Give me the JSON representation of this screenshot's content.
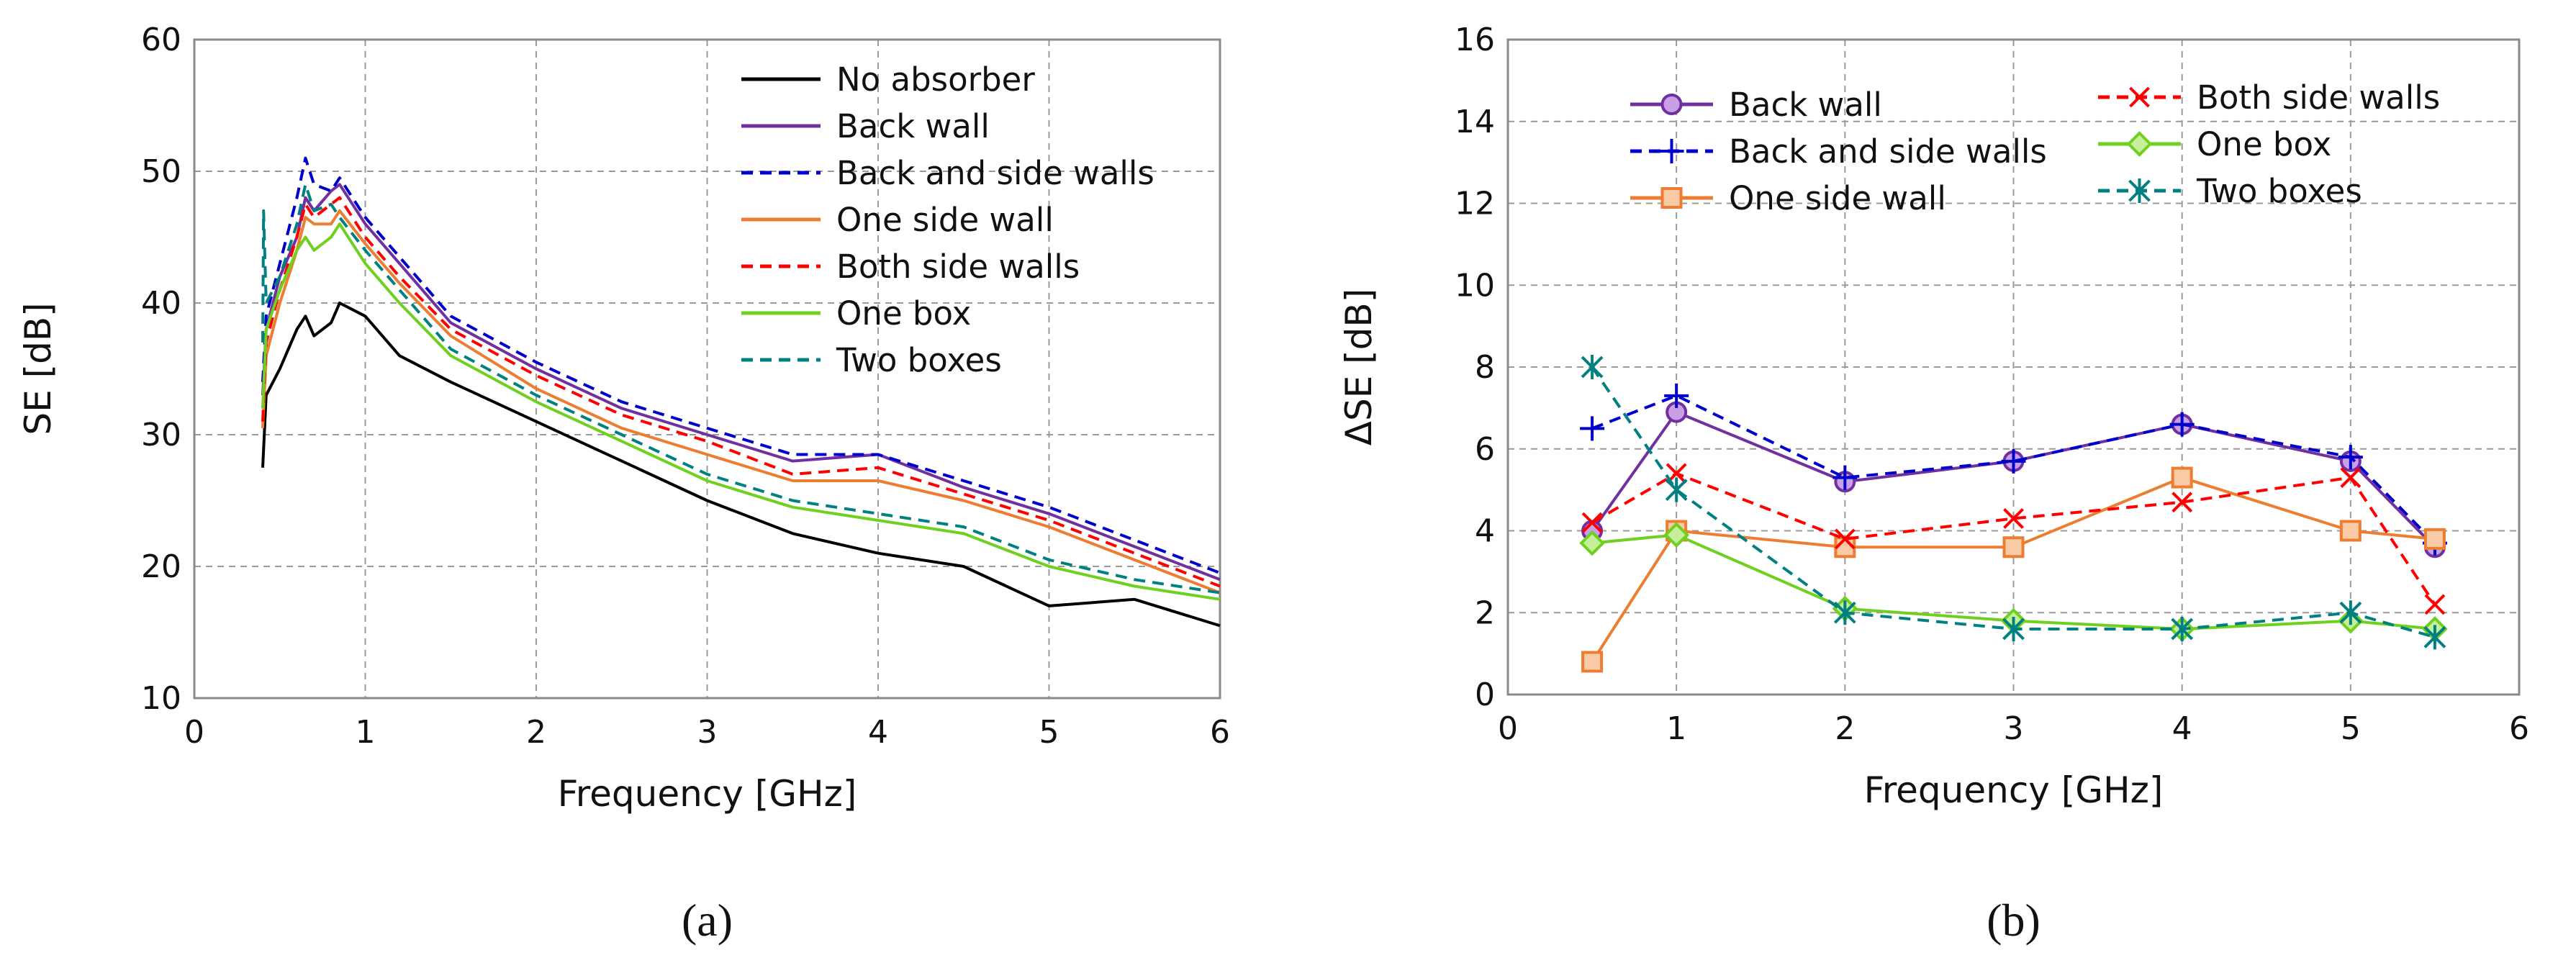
{
  "chart_data": [
    {
      "panel_label": "(a)",
      "type": "line",
      "xlabel": "Frequency [GHz]",
      "ylabel": "SE [dB]",
      "xlim": [
        0,
        6
      ],
      "ylim": [
        10,
        60
      ],
      "xticks": [
        "0",
        "1",
        "2",
        "3",
        "4",
        "5",
        "6"
      ],
      "yticks": [
        "10",
        "20",
        "30",
        "40",
        "50",
        "60"
      ],
      "grid": true,
      "legend_position": "top-right",
      "series": [
        {
          "name": "No absorber",
          "color": "#000000",
          "dash": "solid",
          "x": [
            0.4,
            0.42,
            0.5,
            0.6,
            0.65,
            0.7,
            0.8,
            0.85,
            1.0,
            1.2,
            1.5,
            2.0,
            2.5,
            3.0,
            3.5,
            4.0,
            4.5,
            5.0,
            5.5,
            6.0
          ],
          "y": [
            27.5,
            33,
            35,
            38,
            39,
            37.5,
            38.5,
            40,
            39,
            36,
            34,
            31,
            28,
            25,
            22.5,
            21,
            20,
            17,
            17.5,
            15.5
          ]
        },
        {
          "name": "Back wall",
          "color": "#7030a0",
          "dash": "solid",
          "x": [
            0.4,
            0.42,
            0.5,
            0.6,
            0.65,
            0.7,
            0.8,
            0.85,
            1.0,
            1.2,
            1.5,
            2.0,
            2.5,
            3.0,
            3.5,
            4.0,
            4.5,
            5.0,
            5.5,
            6.0
          ],
          "y": [
            33,
            38,
            42,
            45,
            48,
            47,
            48.5,
            49,
            46,
            43,
            38.5,
            35,
            32,
            30,
            28,
            28.5,
            26,
            24,
            21.5,
            19
          ]
        },
        {
          "name": "Back and side walls",
          "color": "#0000cc",
          "dash": "dash",
          "x": [
            0.4,
            0.42,
            0.5,
            0.6,
            0.65,
            0.7,
            0.8,
            0.85,
            1.0,
            1.2,
            1.5,
            2.0,
            2.5,
            3.0,
            3.5,
            4.0,
            4.5,
            5.0,
            5.5,
            6.0
          ],
          "y": [
            34,
            39,
            43,
            48,
            51,
            49,
            48.5,
            49.5,
            46.5,
            43.5,
            39,
            35.5,
            32.5,
            30.5,
            28.5,
            28.5,
            26.5,
            24.5,
            22,
            19.5
          ]
        },
        {
          "name": "One side wall",
          "color": "#ed7d31",
          "dash": "solid",
          "x": [
            0.4,
            0.42,
            0.5,
            0.6,
            0.65,
            0.7,
            0.8,
            0.85,
            1.0,
            1.2,
            1.5,
            2.0,
            2.5,
            3.0,
            3.5,
            4.0,
            4.5,
            5.0,
            5.5,
            6.0
          ],
          "y": [
            30.5,
            36,
            40,
            44,
            46.5,
            46,
            46,
            47,
            44.5,
            41.5,
            37.5,
            33.5,
            30.5,
            28.5,
            26.5,
            26.5,
            25,
            23,
            20.5,
            18
          ]
        },
        {
          "name": "Both side walls",
          "color": "#ff0000",
          "dash": "dash",
          "x": [
            0.4,
            0.42,
            0.5,
            0.6,
            0.65,
            0.7,
            0.8,
            0.85,
            1.0,
            1.2,
            1.5,
            2.0,
            2.5,
            3.0,
            3.5,
            4.0,
            4.5,
            5.0,
            5.5,
            6.0
          ],
          "y": [
            31,
            37,
            41,
            45,
            47.5,
            46.5,
            47.5,
            48,
            45,
            42,
            38,
            34.5,
            31.5,
            29.5,
            27,
            27.5,
            25.5,
            23.5,
            21,
            18.5
          ]
        },
        {
          "name": "One box",
          "color": "#70d020",
          "dash": "solid",
          "x": [
            0.4,
            0.42,
            0.5,
            0.6,
            0.65,
            0.7,
            0.8,
            0.85,
            1.0,
            1.2,
            1.5,
            2.0,
            2.5,
            3.0,
            3.5,
            4.0,
            4.5,
            5.0,
            5.5,
            6.0
          ],
          "y": [
            32,
            38,
            41,
            44,
            45,
            44,
            45,
            46,
            43,
            40,
            36,
            32.5,
            29.5,
            26.5,
            24.5,
            23.5,
            22.5,
            20,
            18.5,
            17.5
          ]
        },
        {
          "name": "Two boxes",
          "color": "#008080",
          "dash": "dash",
          "x": [
            0.4,
            0.405,
            0.42,
            0.5,
            0.6,
            0.65,
            0.7,
            0.8,
            0.85,
            1.0,
            1.2,
            1.5,
            2.0,
            2.5,
            3.0,
            3.5,
            4.0,
            4.5,
            5.0,
            5.5,
            6.0
          ],
          "y": [
            37,
            47,
            40,
            42,
            46,
            49,
            47,
            47.5,
            46.5,
            44,
            41,
            36.5,
            33,
            30,
            27,
            25,
            24,
            23,
            20.5,
            19,
            18
          ]
        }
      ]
    },
    {
      "panel_label": "(b)",
      "type": "line",
      "xlabel": "Frequency [GHz]",
      "ylabel": "ΔSE [dB]",
      "xlim": [
        0,
        6
      ],
      "ylim": [
        0,
        16
      ],
      "xticks": [
        "0",
        "1",
        "2",
        "3",
        "4",
        "5",
        "6"
      ],
      "yticks": [
        "0",
        "2",
        "4",
        "6",
        "8",
        "10",
        "12",
        "14",
        "16"
      ],
      "grid": true,
      "legend_position": "top",
      "series": [
        {
          "name": "Back wall",
          "color": "#7030a0",
          "marker_fill": "#c9a0e6",
          "dash": "solid",
          "marker": "circle",
          "x": [
            0.5,
            1,
            2,
            3,
            4,
            5,
            5.5
          ],
          "y": [
            4.0,
            6.9,
            5.2,
            5.7,
            6.6,
            5.7,
            3.6
          ]
        },
        {
          "name": "Back and side walls",
          "color": "#0000cc",
          "dash": "dash",
          "marker": "plus",
          "x": [
            0.5,
            1,
            2,
            3,
            4,
            5,
            5.5
          ],
          "y": [
            6.5,
            7.3,
            5.3,
            5.7,
            6.6,
            5.8,
            3.7
          ]
        },
        {
          "name": "One side wall",
          "color": "#ed7d31",
          "marker_fill": "#f8cba6",
          "dash": "solid",
          "marker": "square",
          "x": [
            0.5,
            1,
            2,
            3,
            4,
            5,
            5.5
          ],
          "y": [
            0.8,
            4.0,
            3.6,
            3.6,
            5.3,
            4.0,
            3.8
          ]
        },
        {
          "name": "Both side walls",
          "color": "#ff0000",
          "dash": "dash",
          "marker": "cross",
          "x": [
            0.5,
            1,
            2,
            3,
            4,
            5,
            5.5
          ],
          "y": [
            4.2,
            5.4,
            3.8,
            4.3,
            4.7,
            5.3,
            2.2
          ]
        },
        {
          "name": "One box",
          "color": "#70d020",
          "marker_fill": "#c6ef9a",
          "dash": "solid",
          "marker": "diamond",
          "x": [
            0.5,
            1,
            2,
            3,
            4,
            5,
            5.5
          ],
          "y": [
            3.7,
            3.9,
            2.1,
            1.8,
            1.6,
            1.8,
            1.6
          ]
        },
        {
          "name": "Two boxes",
          "color": "#008080",
          "dash": "dash",
          "marker": "asterisk",
          "x": [
            0.5,
            1,
            2,
            3,
            4,
            5,
            5.5
          ],
          "y": [
            8.0,
            5.0,
            2.0,
            1.6,
            1.6,
            2.0,
            1.4
          ]
        }
      ]
    }
  ]
}
